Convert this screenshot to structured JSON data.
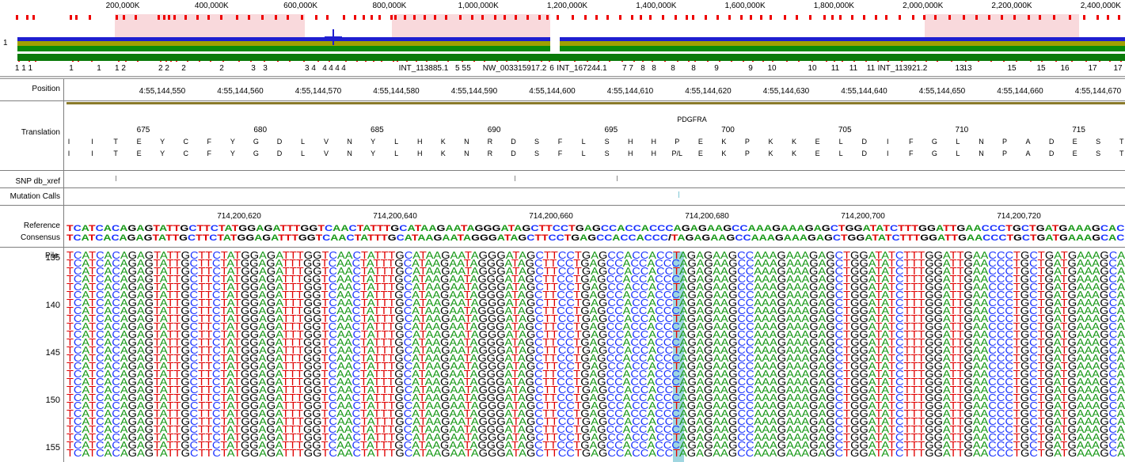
{
  "overview": {
    "track_label": "1",
    "ticks": [
      "200,000K",
      "400,000K",
      "600,000K",
      "800,000K",
      "1,000,000K",
      "1,200,000K",
      "1,400,000K",
      "1,600,000K",
      "1,800,000K",
      "2,000,000K",
      "2,200,000K",
      "2,400,000K"
    ],
    "bottom_labels": [
      "1 1 1",
      "1",
      "1",
      "1 2",
      "2 2",
      "2",
      "2",
      "3",
      "3",
      "3 4",
      "4",
      "4",
      "4",
      "4",
      "INT_113885.1",
      "5 5",
      "5",
      "NW_003315917.2",
      "6",
      "INT_167244.1",
      "7 7",
      "8",
      "8",
      "8",
      "8",
      "9",
      "9",
      "10",
      "10",
      "11",
      "11",
      "11",
      "INT_113921.2",
      "13",
      "13",
      "15",
      "15",
      "16",
      "17",
      "17"
    ]
  },
  "tracks": {
    "position_label": "Position",
    "translation_label": "Translation",
    "snp_label": "SNP db_xref",
    "mutation_label": "Mutation Calls",
    "reference_label": "Reference",
    "consensus_label": "Consensus",
    "pile_label": "Pile"
  },
  "positions": [
    "4:55,144,550",
    "4:55,144,560",
    "4:55,144,570",
    "4:55,144,580",
    "4:55,144,590",
    "4:55,144,600",
    "4:55,144,610",
    "4:55,144,620",
    "4:55,144,630",
    "4:55,144,640",
    "4:55,144,650",
    "4:55,144,660",
    "4:55,144,670"
  ],
  "translation": {
    "gene": "PDGFRA",
    "numbers": [
      "675",
      "680",
      "685",
      "690",
      "695",
      "700",
      "705",
      "710",
      "715"
    ],
    "row1": [
      "I",
      "I",
      "T",
      "E",
      "Y",
      "C",
      "F",
      "Y",
      "G",
      "D",
      "L",
      "V",
      "N",
      "Y",
      "L",
      "H",
      "K",
      "N",
      "R",
      "D",
      "S",
      "F",
      "L",
      "S",
      "H",
      "H",
      "P",
      "E",
      "K",
      "P",
      "K",
      "K",
      "E",
      "L",
      "D",
      "I",
      "F",
      "G",
      "L",
      "N",
      "P",
      "A",
      "D",
      "E",
      "S",
      "T"
    ],
    "row2": [
      "I",
      "I",
      "T",
      "E",
      "Y",
      "C",
      "F",
      "Y",
      "G",
      "D",
      "L",
      "V",
      "N",
      "Y",
      "L",
      "H",
      "K",
      "N",
      "R",
      "D",
      "S",
      "F",
      "L",
      "S",
      "H",
      "H",
      "P/L",
      "E",
      "K",
      "P",
      "K",
      "K",
      "E",
      "L",
      "D",
      "I",
      "F",
      "G",
      "L",
      "N",
      "P",
      "A",
      "D",
      "E",
      "S",
      "T"
    ]
  },
  "ref_coords": [
    "714,200,620",
    "714,200,640",
    "714,200,660",
    "714,200,680",
    "714,200,700",
    "714,200,720"
  ],
  "reference_seq": "TCATCACAGAGTATTGCTTCTATGGAGATTTGGTCAACTATTTGCATAAGAATAGGGATAGCTTCCTGAGCCACCACCCAGAGAAGCCAAAGAAAGAGCTGGATATCTTTGGATTGAACCCTGCTGATGAAAGCAC",
  "consensus_seq": "TCATCACAGAGTATTGCTTCTATGGAGATTTGGTCAACTATTTGCATAAGAATAGGGATAGCTTCCTGAGCCACCACCC/TAGAGAAGCCAAAGAAAGAGCTGGATATCTTTGGATTGAACCCTGCTGATGAAAGCAC",
  "pile": {
    "row_numbers": [
      "135",
      "140",
      "145",
      "150",
      "155"
    ],
    "seq_ref": "TCATCACAGAGTATTGCTTCTATGGAGATTTGGTCAACTATTTGCATAAGAATAGGGATAGCTTCCTGAGCCACCACCCAGAGAAGCCAAAGAAAGAGCTGGATATCTTTGGATTGAACCCTGCTGATGAAAGCA",
    "seq_alt": "TCATCACAGAGTATTGCTTCTATGGAGATTTGGTCAACTATTTGCATAAGAATAGGGATAGCTTCCTGAGCCACCACCTAGAGAAGCCAAAGAAAGAGCTGGATATCTTTGGATTGAACCCTGCTGATGAAAGCA",
    "alt_rows": [
      0,
      2,
      4,
      6,
      8,
      10,
      12,
      14,
      17,
      19,
      21,
      23,
      25
    ]
  }
}
